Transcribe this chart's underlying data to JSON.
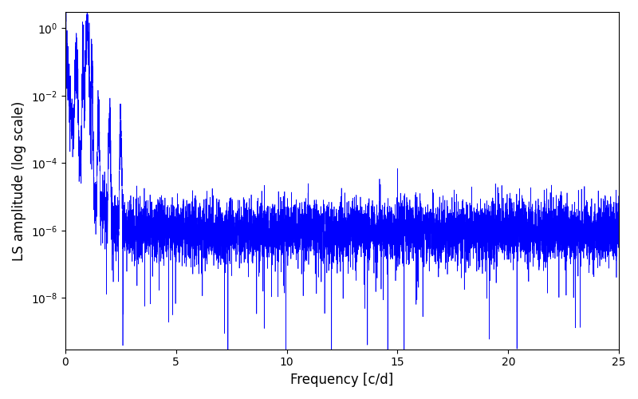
{
  "title": "",
  "xlabel": "Frequency [c/d]",
  "ylabel": "LS amplitude (log scale)",
  "line_color": "#0000ff",
  "line_width": 0.5,
  "xlim": [
    0,
    25
  ],
  "yscale": "log",
  "ylim_bottom": 3e-10,
  "ylim_top": 3.0,
  "figsize": [
    8.0,
    5.0
  ],
  "dpi": 100,
  "yticks": [
    1e-08,
    1e-06,
    0.0001,
    0.01,
    1.0
  ],
  "xticks": [
    0,
    5,
    10,
    15,
    20,
    25
  ],
  "seed": 7777,
  "n_points": 8000,
  "freq_max": 25.0,
  "peak_freq": 1.0,
  "peak_amp": 1.0,
  "noise_floor_log": -6.0,
  "low_freq_power": 3.5,
  "low_freq_knee": 2.5,
  "noise_log_std": 1.0,
  "deep_spike_prob": 0.04,
  "deep_spike_scale": 1.8
}
